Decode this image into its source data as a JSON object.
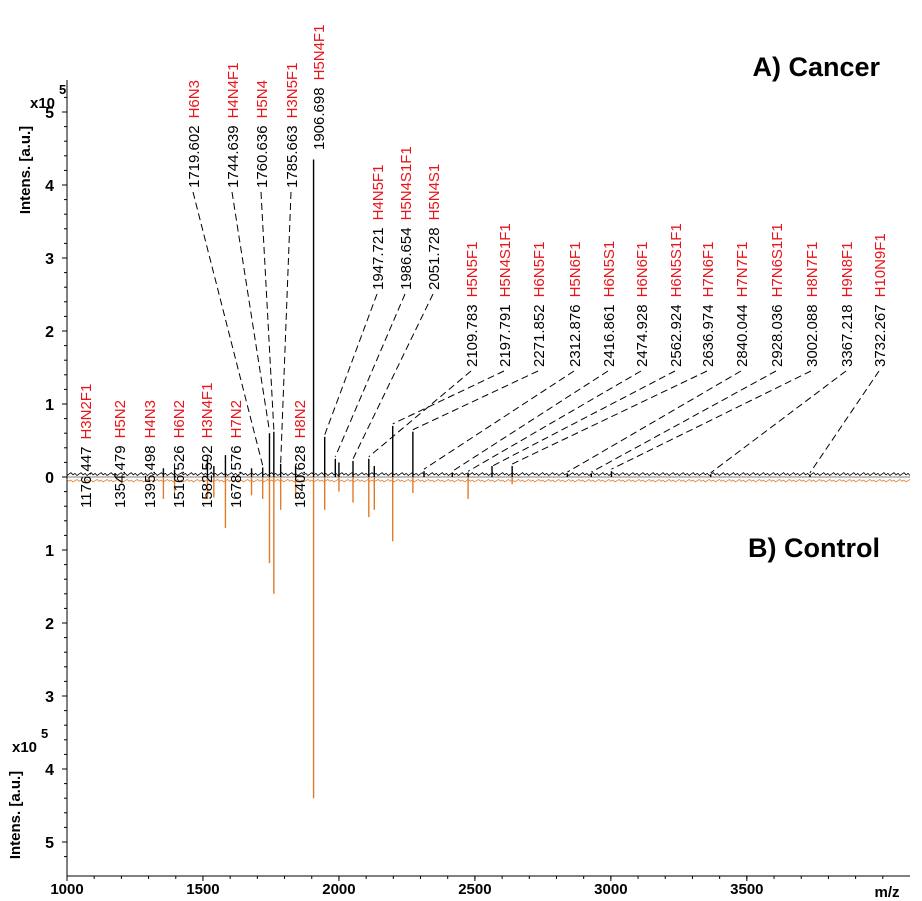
{
  "chart_data": {
    "type": "mirror-spectrum",
    "x_label": "m/z",
    "xlim": [
      1000,
      4100
    ],
    "x_ticks": [
      "1000",
      "1500",
      "2000",
      "2500",
      "3000",
      "3500"
    ],
    "colors": {
      "cancer": "#000000",
      "control": "#e07b2a",
      "composition": "#e8141b",
      "mass": "#000000"
    },
    "top_panel": {
      "title": "A) Cancer",
      "y_label": "Intens. [a.u.]",
      "y_scale_label": "x10",
      "y_scale_exp": "5",
      "ylim": [
        0,
        5.5
      ],
      "y_ticks": [
        "0",
        "1",
        "2",
        "3",
        "4",
        "5"
      ]
    },
    "bottom_panel": {
      "title": "B) Control",
      "y_label": "Intens. [a.u.]",
      "y_scale_label": "x10",
      "y_scale_exp": "5",
      "ylim": [
        0,
        5.5
      ],
      "y_ticks": [
        "1",
        "2",
        "3",
        "4",
        "5"
      ]
    },
    "annotations": [
      {
        "mass": "1176.447",
        "glycan": "H3N2F1",
        "x": 1176.447,
        "y": 0.05,
        "group": "low"
      },
      {
        "mass": "1354.479",
        "glycan": "H5N2",
        "x": 1354.479,
        "y": 0.08,
        "group": "low"
      },
      {
        "mass": "1395.498",
        "glycan": "H4N3",
        "x": 1395.498,
        "y": 0.06,
        "group": "low"
      },
      {
        "mass": "1516.526",
        "glycan": "H6N2",
        "x": 1516.526,
        "y": 0.15,
        "group": "low"
      },
      {
        "mass": "1582.592",
        "glycan": "H3N4F1",
        "x": 1582.592,
        "y": 0.25,
        "group": "low"
      },
      {
        "mass": "1678.576",
        "glycan": "H7N2",
        "x": 1678.576,
        "y": 0.12,
        "group": "low"
      },
      {
        "mass": "1719.602",
        "glycan": "H6N3",
        "x": 1719.602,
        "y": 0.13,
        "group": "top"
      },
      {
        "mass": "1744.639",
        "glycan": "H4N4F1",
        "x": 1744.639,
        "y": 0.6,
        "group": "top"
      },
      {
        "mass": "1760.636",
        "glycan": "H5N4",
        "x": 1760.636,
        "y": 0.62,
        "group": "top"
      },
      {
        "mass": "1785.663",
        "glycan": "H3N5F1",
        "x": 1785.663,
        "y": 0.15,
        "group": "top"
      },
      {
        "mass": "1840.628",
        "glycan": "H8N2",
        "x": 1840.628,
        "y": 0.12,
        "group": "low"
      },
      {
        "mass": "1906.698",
        "glycan": "H5N4F1",
        "x": 1906.698,
        "y": 4.35,
        "group": "top"
      },
      {
        "mass": "1947.721",
        "glycan": "H4N5F1",
        "x": 1947.721,
        "y": 0.55,
        "group": "mid"
      },
      {
        "mass": "1986.654",
        "glycan": "H5N4S1F1",
        "x": 1986.654,
        "y": 0.25,
        "group": "mid"
      },
      {
        "mass": "2051.728",
        "glycan": "H5N4S1",
        "x": 2051.728,
        "y": 0.22,
        "group": "mid"
      },
      {
        "mass": "2109.783",
        "glycan": "H5N5F1",
        "x": 2109.783,
        "y": 0.25,
        "group": "right"
      },
      {
        "mass": "2197.791",
        "glycan": "H5N4S1F1",
        "x": 2197.791,
        "y": 0.7,
        "group": "right"
      },
      {
        "mass": "2271.852",
        "glycan": "H6N5F1",
        "x": 2271.852,
        "y": 0.62,
        "group": "right"
      },
      {
        "mass": "2312.876",
        "glycan": "H5N6F1",
        "x": 2312.876,
        "y": 0.08,
        "group": "right"
      },
      {
        "mass": "2416.861",
        "glycan": "H6N5S1",
        "x": 2416.861,
        "y": 0.05,
        "group": "right"
      },
      {
        "mass": "2474.928",
        "glycan": "H6N6F1",
        "x": 2474.928,
        "y": 0.05,
        "group": "right"
      },
      {
        "mass": "2562.924",
        "glycan": "H6N5S1F1",
        "x": 2562.924,
        "y": 0.12,
        "group": "right"
      },
      {
        "mass": "2636.974",
        "glycan": "H7N6F1",
        "x": 2636.974,
        "y": 0.15,
        "group": "right"
      },
      {
        "mass": "2840.044",
        "glycan": "H7N7F1",
        "x": 2840.044,
        "y": 0.04,
        "group": "right"
      },
      {
        "mass": "2928.036",
        "glycan": "H7N6S1F1",
        "x": 2928.036,
        "y": 0.04,
        "group": "right"
      },
      {
        "mass": "3002.088",
        "glycan": "H8N7F1",
        "x": 3002.088,
        "y": 0.08,
        "group": "right"
      },
      {
        "mass": "3367.218",
        "glycan": "H9N8F1",
        "x": 3367.218,
        "y": 0.03,
        "group": "right"
      },
      {
        "mass": "3732.267",
        "glycan": "H10N9F1",
        "x": 3732.267,
        "y": 0.03,
        "group": "right"
      }
    ],
    "cancer_peaks": [
      {
        "x": 1176.4,
        "y": 0.05
      },
      {
        "x": 1354.5,
        "y": 0.12
      },
      {
        "x": 1395.5,
        "y": 0.1
      },
      {
        "x": 1516.5,
        "y": 0.25
      },
      {
        "x": 1540,
        "y": 0.15
      },
      {
        "x": 1582.6,
        "y": 0.3
      },
      {
        "x": 1678.6,
        "y": 0.12
      },
      {
        "x": 1719.6,
        "y": 0.13
      },
      {
        "x": 1744.6,
        "y": 0.6
      },
      {
        "x": 1760.6,
        "y": 0.62
      },
      {
        "x": 1785.7,
        "y": 0.18
      },
      {
        "x": 1840.6,
        "y": 0.15
      },
      {
        "x": 1906.7,
        "y": 4.35
      },
      {
        "x": 1947.7,
        "y": 0.55
      },
      {
        "x": 1986.7,
        "y": 0.25
      },
      {
        "x": 2000,
        "y": 0.2
      },
      {
        "x": 2051.7,
        "y": 0.22
      },
      {
        "x": 2109.8,
        "y": 0.25
      },
      {
        "x": 2130,
        "y": 0.15
      },
      {
        "x": 2197.8,
        "y": 0.7
      },
      {
        "x": 2271.9,
        "y": 0.62
      },
      {
        "x": 2312.9,
        "y": 0.08
      },
      {
        "x": 2416.9,
        "y": 0.05
      },
      {
        "x": 2474.9,
        "y": 0.06
      },
      {
        "x": 2562.9,
        "y": 0.15
      },
      {
        "x": 2636.97,
        "y": 0.15
      },
      {
        "x": 2840,
        "y": 0.05
      },
      {
        "x": 2928,
        "y": 0.05
      },
      {
        "x": 3002.1,
        "y": 0.08
      },
      {
        "x": 3367.2,
        "y": 0.03
      },
      {
        "x": 3732.3,
        "y": 0.03
      }
    ],
    "control_peaks": [
      {
        "x": 1354.5,
        "y": 0.3
      },
      {
        "x": 1395.5,
        "y": 0.2
      },
      {
        "x": 1516.5,
        "y": 0.3
      },
      {
        "x": 1540,
        "y": 0.28
      },
      {
        "x": 1582.6,
        "y": 0.7
      },
      {
        "x": 1678.6,
        "y": 0.25
      },
      {
        "x": 1719.6,
        "y": 0.3
      },
      {
        "x": 1744.6,
        "y": 1.18
      },
      {
        "x": 1760.6,
        "y": 1.6
      },
      {
        "x": 1785.7,
        "y": 0.45
      },
      {
        "x": 1840.6,
        "y": 0.3
      },
      {
        "x": 1906.7,
        "y": 4.4
      },
      {
        "x": 1947.7,
        "y": 0.45
      },
      {
        "x": 2000,
        "y": 0.2
      },
      {
        "x": 2051.7,
        "y": 0.35
      },
      {
        "x": 2109.8,
        "y": 0.55
      },
      {
        "x": 2130,
        "y": 0.45
      },
      {
        "x": 2197.8,
        "y": 0.88
      },
      {
        "x": 2271.9,
        "y": 0.22
      },
      {
        "x": 2474.9,
        "y": 0.3
      },
      {
        "x": 2636.97,
        "y": 0.1
      }
    ]
  }
}
